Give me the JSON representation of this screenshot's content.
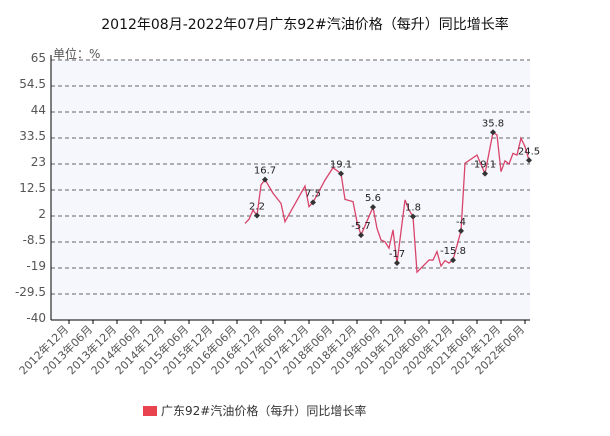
{
  "chart_data": {
    "type": "line",
    "title": "2012年08月-2022年07月广东92#汽油价格（每升）同比增长率",
    "unit_label": "单位：%",
    "xlabel": "",
    "ylabel": "",
    "ylim": [
      -40,
      65
    ],
    "y_ticks": [
      "65",
      "54.5",
      "44",
      "33.5",
      "23",
      "12.5",
      "2",
      "-8.5",
      "-19",
      "-29.5",
      "-40"
    ],
    "x_range": [
      "2012-08",
      "2022-07"
    ],
    "x_ticks": [
      "2012年12月",
      "2013年06月",
      "2013年12月",
      "2014年06月",
      "2014年12月",
      "2015年06月",
      "2015年12月",
      "2016年06月",
      "2016年12月",
      "2017年06月",
      "2017年12月",
      "2018年06月",
      "2018年12月",
      "2019年06月",
      "2019年12月",
      "2020年06月",
      "2020年12月",
      "2021年06月",
      "2021年12月",
      "2022年06月"
    ],
    "grid": true,
    "legend_position": "bottom",
    "series": [
      {
        "name": "广东92#汽油价格（每升）同比增长率",
        "color": "#d9446b",
        "points": [
          [
            "2016-08",
            -1.0
          ],
          [
            "2016-09",
            0.7
          ],
          [
            "2016-10",
            4.4
          ],
          [
            "2016-11",
            2.2
          ],
          [
            "2016-12",
            14.5
          ],
          [
            "2017-01",
            16.7
          ],
          [
            "2017-03",
            11.2
          ],
          [
            "2017-05",
            7.1
          ],
          [
            "2017-06",
            -0.3
          ],
          [
            "2017-11",
            14.1
          ],
          [
            "2017-12",
            5.8
          ],
          [
            "2018-01",
            7.5
          ],
          [
            "2018-04",
            16.5
          ],
          [
            "2018-06",
            21.5
          ],
          [
            "2018-08",
            19.1
          ],
          [
            "2018-09",
            8.7
          ],
          [
            "2018-11",
            7.8
          ],
          [
            "2018-12",
            -0.3
          ],
          [
            "2019-01",
            -5.7
          ],
          [
            "2019-04",
            5.6
          ],
          [
            "2019-05",
            -3.0
          ],
          [
            "2019-06",
            -7.7
          ],
          [
            "2019-07",
            -8.4
          ],
          [
            "2019-08",
            -11.0
          ],
          [
            "2019-09",
            -3.6
          ],
          [
            "2019-10",
            -17.0
          ],
          [
            "2019-12",
            8.5
          ],
          [
            "2020-01",
            4.4
          ],
          [
            "2020-02",
            1.8
          ],
          [
            "2020-03",
            -20.7
          ],
          [
            "2020-06",
            -15.8
          ],
          [
            "2020-07",
            -15.8
          ],
          [
            "2020-08",
            -12.4
          ],
          [
            "2020-09",
            -18.2
          ],
          [
            "2020-10",
            -16.0
          ],
          [
            "2020-11",
            -17.0
          ],
          [
            "2020-12",
            -15.8
          ],
          [
            "2021-02",
            -4.0
          ],
          [
            "2021-03",
            23.3
          ],
          [
            "2021-06",
            26.6
          ],
          [
            "2021-08",
            19.1
          ],
          [
            "2021-10",
            35.8
          ],
          [
            "2021-11",
            34.7
          ],
          [
            "2021-12",
            19.9
          ],
          [
            "2022-01",
            24.3
          ],
          [
            "2022-02",
            23.0
          ],
          [
            "2022-03",
            27.3
          ],
          [
            "2022-04",
            26.6
          ],
          [
            "2022-05",
            33.4
          ],
          [
            "2022-06",
            30.0
          ],
          [
            "2022-07",
            24.5
          ]
        ],
        "labeled_points": [
          [
            "2016-11",
            "2.2"
          ],
          [
            "2017-01",
            "16.7"
          ],
          [
            "2018-01",
            "7.5"
          ],
          [
            "2018-08",
            "19.1"
          ],
          [
            "2019-01",
            "-5.7"
          ],
          [
            "2019-04",
            "5.6"
          ],
          [
            "2019-10",
            "-17"
          ],
          [
            "2020-02",
            "1.8"
          ],
          [
            "2020-12",
            "-15.8"
          ],
          [
            "2021-02",
            "-4"
          ],
          [
            "2021-08",
            "19.1"
          ],
          [
            "2021-10",
            "35.8"
          ],
          [
            "2022-07",
            "24.5"
          ]
        ]
      }
    ]
  }
}
